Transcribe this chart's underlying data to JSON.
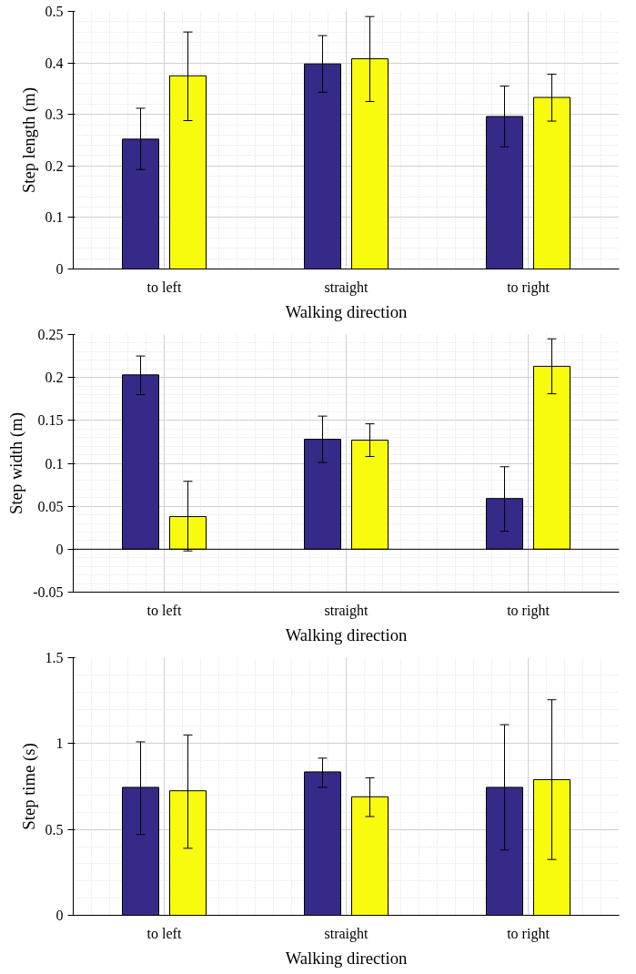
{
  "chart_data": [
    {
      "type": "bar",
      "categories": [
        "to left",
        "straight",
        "to right"
      ],
      "xlabel": "Walking direction",
      "ylabel": "Step length (m)",
      "ylim": [
        0,
        0.5
      ],
      "yticks": [
        0,
        0.1,
        0.2,
        0.3,
        0.4,
        0.5
      ],
      "grid": true,
      "series": [
        {
          "color": "#352a87",
          "values": [
            0.252,
            0.398,
            0.296
          ],
          "errors": [
            [
              0.193,
              0.312
            ],
            [
              0.343,
              0.453
            ],
            [
              0.237,
              0.355
            ]
          ]
        },
        {
          "color": "#f9fb0e",
          "values": [
            0.375,
            0.408,
            0.333
          ],
          "errors": [
            [
              0.288,
              0.46
            ],
            [
              0.325,
              0.49
            ],
            [
              0.287,
              0.378
            ]
          ]
        }
      ]
    },
    {
      "type": "bar",
      "categories": [
        "to left",
        "straight",
        "to right"
      ],
      "xlabel": "Walking direction",
      "ylabel": "Step width (m)",
      "ylim": [
        -0.05,
        0.25
      ],
      "yticks": [
        -0.05,
        0,
        0.05,
        0.1,
        0.15,
        0.2,
        0.25
      ],
      "grid": true,
      "series": [
        {
          "color": "#352a87",
          "values": [
            0.203,
            0.128,
            0.059
          ],
          "errors": [
            [
              0.18,
              0.225
            ],
            [
              0.101,
              0.155
            ],
            [
              0.021,
              0.096
            ]
          ]
        },
        {
          "color": "#f9fb0e",
          "values": [
            0.038,
            0.127,
            0.213
          ],
          "errors": [
            [
              -0.002,
              0.079
            ],
            [
              0.108,
              0.146
            ],
            [
              0.181,
              0.245
            ]
          ]
        }
      ]
    },
    {
      "type": "bar",
      "categories": [
        "to left",
        "straight",
        "to right"
      ],
      "xlabel": "Walking direction",
      "ylabel": "Step time (s)",
      "ylim": [
        0,
        1.5
      ],
      "yticks": [
        0,
        0.5,
        1,
        1.5
      ],
      "grid": true,
      "series": [
        {
          "color": "#352a87",
          "values": [
            0.745,
            0.835,
            0.745
          ],
          "errors": [
            [
              0.47,
              1.01
            ],
            [
              0.745,
              0.915
            ],
            [
              0.38,
              1.11
            ]
          ]
        },
        {
          "color": "#f9fb0e",
          "values": [
            0.725,
            0.69,
            0.79
          ],
          "errors": [
            [
              0.39,
              1.05
            ],
            [
              0.575,
              0.8
            ],
            [
              0.325,
              1.255
            ]
          ]
        }
      ]
    }
  ]
}
